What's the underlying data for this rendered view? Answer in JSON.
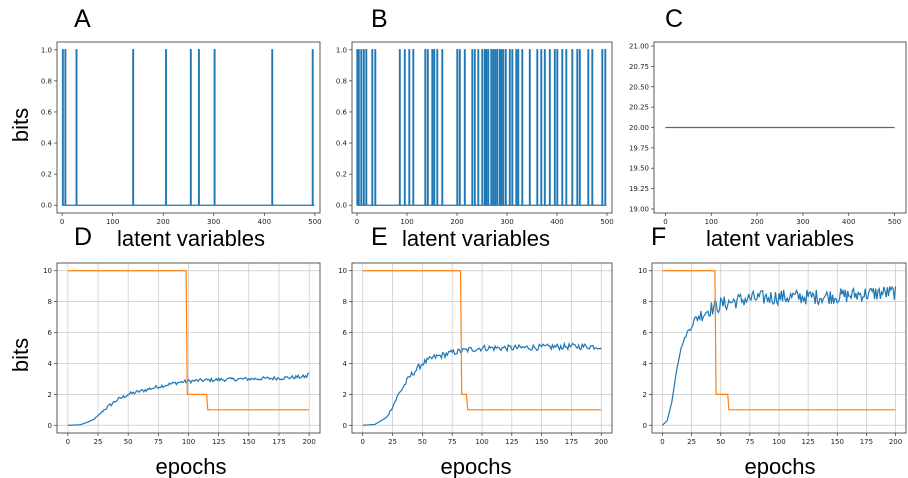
{
  "figure": {
    "ylabel_top": "bits",
    "ylabel_bottom": "bits"
  },
  "chart_data": [
    {
      "id": "A",
      "panel_label": "A",
      "type": "line",
      "mode": "spikes",
      "xlabel": "latent variables",
      "ylabel": "bits",
      "xlim": [
        -10,
        510
      ],
      "ylim": [
        -0.05,
        1.05
      ],
      "xticks": [
        0,
        100,
        200,
        300,
        400,
        500
      ],
      "yticks": [
        0.0,
        0.2,
        0.4,
        0.6,
        0.8,
        1.0
      ],
      "ytick_labels": [
        "0.0",
        "0.2",
        "0.4",
        "0.6",
        "0.8",
        "1.0"
      ],
      "grid": false,
      "color": "#1f77b4",
      "x_range": [
        0,
        499
      ],
      "base_value": 0,
      "peak_value": 1,
      "spikes_at": [
        1,
        6,
        28,
        140,
        205,
        254,
        270,
        301,
        415,
        495
      ]
    },
    {
      "id": "B",
      "panel_label": "B",
      "type": "line",
      "mode": "spikes",
      "xlabel": "latent variables",
      "ylabel": "",
      "xlim": [
        -10,
        510
      ],
      "ylim": [
        -0.05,
        1.05
      ],
      "xticks": [
        0,
        100,
        200,
        300,
        400,
        500
      ],
      "yticks": [
        0.0,
        0.2,
        0.4,
        0.6,
        0.8,
        1.0
      ],
      "ytick_labels": [
        "0.0",
        "0.2",
        "0.4",
        "0.6",
        "0.8",
        "1.0"
      ],
      "grid": false,
      "color": "#1f77b4",
      "x_range": [
        0,
        499
      ],
      "base_value": 0,
      "peak_value": 1,
      "spikes_at": [
        0,
        3,
        8,
        13,
        18,
        30,
        36,
        85,
        95,
        104,
        112,
        136,
        141,
        150,
        154,
        160,
        170,
        200,
        205,
        215,
        230,
        235,
        242,
        250,
        255,
        258,
        262,
        268,
        272,
        276,
        280,
        285,
        288,
        292,
        297,
        305,
        310,
        318,
        322,
        330,
        345,
        360,
        368,
        375,
        385,
        395,
        400,
        410,
        418,
        430,
        440,
        445,
        462,
        470,
        490,
        496
      ]
    },
    {
      "id": "C",
      "panel_label": "C",
      "type": "line",
      "mode": "constant",
      "xlabel": "latent variables",
      "ylabel": "",
      "xlim": [
        -25,
        525
      ],
      "ylim": [
        18.95,
        21.05
      ],
      "xticks": [
        0,
        100,
        200,
        300,
        400,
        500
      ],
      "yticks": [
        19.0,
        19.25,
        19.5,
        19.75,
        20.0,
        20.25,
        20.5,
        20.75,
        21.0
      ],
      "ytick_labels": [
        "19.00",
        "19.25",
        "19.50",
        "19.75",
        "20.00",
        "20.25",
        "20.50",
        "20.75",
        "21.00"
      ],
      "grid": false,
      "color": "#1f77b4",
      "x_range": [
        0,
        500
      ],
      "constant_value": 20.0
    },
    {
      "id": "D",
      "panel_label": "D",
      "type": "line",
      "mode": "training",
      "xlabel": "epochs",
      "ylabel": "bits",
      "xlim": [
        -9,
        209
      ],
      "ylim": [
        -0.5,
        10.5
      ],
      "xticks": [
        0,
        25,
        50,
        75,
        100,
        125,
        150,
        175,
        200
      ],
      "yticks": [
        0,
        2,
        4,
        6,
        8,
        10
      ],
      "ytick_labels": [
        "0",
        "2",
        "4",
        "6",
        "8",
        "10"
      ],
      "grid": true,
      "series": [
        {
          "color": "#1f77b4",
          "points": [
            [
              0,
              0
            ],
            [
              10,
              0.03
            ],
            [
              20,
              0.3
            ],
            [
              25,
              0.6
            ],
            [
              30,
              1.0
            ],
            [
              40,
              1.6
            ],
            [
              50,
              2.0
            ],
            [
              60,
              2.2
            ],
            [
              75,
              2.5
            ],
            [
              90,
              2.75
            ],
            [
              100,
              2.85
            ],
            [
              110,
              2.9
            ],
            [
              125,
              2.95
            ],
            [
              150,
              3.0
            ],
            [
              175,
              3.05
            ],
            [
              198,
              3.15
            ],
            [
              200,
              3.4
            ]
          ],
          "noise": 0.12
        },
        {
          "color": "#ff7f0e",
          "points": [
            [
              0,
              10
            ],
            [
              98,
              10
            ],
            [
              99,
              2
            ],
            [
              115,
              2
            ],
            [
              116,
              1
            ],
            [
              200,
              1
            ]
          ],
          "noise": 0
        }
      ]
    },
    {
      "id": "E",
      "panel_label": "E",
      "type": "line",
      "mode": "training",
      "xlabel": "epochs",
      "ylabel": "",
      "xlim": [
        -9,
        209
      ],
      "ylim": [
        -0.5,
        10.5
      ],
      "xticks": [
        0,
        25,
        50,
        75,
        100,
        125,
        150,
        175,
        200
      ],
      "yticks": [
        0,
        2,
        4,
        6,
        8,
        10
      ],
      "ytick_labels": [
        "0",
        "2",
        "4",
        "6",
        "8",
        "10"
      ],
      "grid": true,
      "series": [
        {
          "color": "#1f77b4",
          "points": [
            [
              0,
              0
            ],
            [
              10,
              0.05
            ],
            [
              20,
              0.5
            ],
            [
              25,
              1.2
            ],
            [
              30,
              2.0
            ],
            [
              40,
              3.2
            ],
            [
              50,
              4.0
            ],
            [
              60,
              4.4
            ],
            [
              75,
              4.7
            ],
            [
              90,
              4.9
            ],
            [
              100,
              5.0
            ],
            [
              125,
              5.0
            ],
            [
              150,
              5.05
            ],
            [
              175,
              5.1
            ],
            [
              200,
              5.1
            ]
          ],
          "noise": 0.2
        },
        {
          "color": "#ff7f0e",
          "points": [
            [
              0,
              10
            ],
            [
              82,
              10
            ],
            [
              83,
              2
            ],
            [
              87,
              2
            ],
            [
              88,
              1
            ],
            [
              200,
              1
            ]
          ],
          "noise": 0
        }
      ]
    },
    {
      "id": "F",
      "panel_label": "F",
      "type": "line",
      "mode": "training",
      "xlabel": "epochs",
      "ylabel": "",
      "xlim": [
        -9,
        209
      ],
      "ylim": [
        -0.5,
        10.5
      ],
      "xticks": [
        0,
        25,
        50,
        75,
        100,
        125,
        150,
        175,
        200
      ],
      "yticks": [
        0,
        2,
        4,
        6,
        8,
        10
      ],
      "ytick_labels": [
        "0",
        "2",
        "4",
        "6",
        "8",
        "10"
      ],
      "grid": true,
      "series": [
        {
          "color": "#1f77b4",
          "points": [
            [
              0,
              0
            ],
            [
              4,
              0.3
            ],
            [
              8,
              1.5
            ],
            [
              12,
              3.5
            ],
            [
              16,
              5.0
            ],
            [
              20,
              5.8
            ],
            [
              25,
              6.5
            ],
            [
              30,
              7.0
            ],
            [
              40,
              7.5
            ],
            [
              50,
              7.8
            ],
            [
              60,
              8.0
            ],
            [
              75,
              8.2
            ],
            [
              100,
              8.3
            ],
            [
              125,
              8.3
            ],
            [
              150,
              8.35
            ],
            [
              175,
              8.5
            ],
            [
              200,
              8.6
            ]
          ],
          "noise": 0.5
        },
        {
          "color": "#ff7f0e",
          "points": [
            [
              0,
              10
            ],
            [
              45,
              10
            ],
            [
              46,
              2
            ],
            [
              56,
              2
            ],
            [
              57,
              1
            ],
            [
              200,
              1
            ]
          ],
          "noise": 0
        }
      ]
    }
  ]
}
